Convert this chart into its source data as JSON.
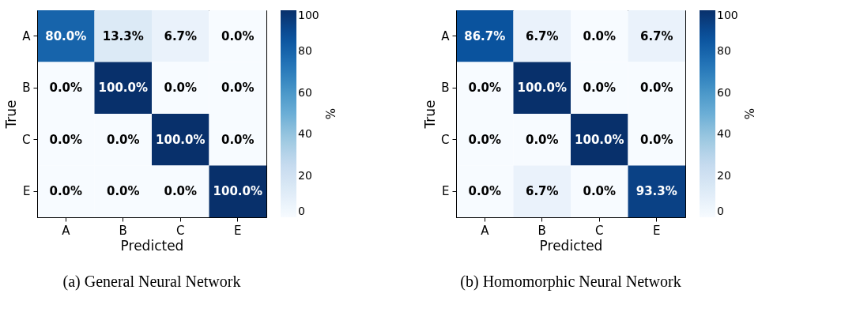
{
  "chart_data": [
    {
      "type": "heatmap",
      "title": "(a) General Neural Network",
      "xlabel": "Predicted",
      "ylabel": "True",
      "clabel": "%",
      "categories": [
        "A",
        "B",
        "C",
        "E"
      ],
      "y_categories": [
        "A",
        "B",
        "C",
        "E"
      ],
      "cells": [
        [
          80.0,
          13.3,
          6.7,
          0.0
        ],
        [
          0.0,
          100.0,
          0.0,
          0.0
        ],
        [
          0.0,
          0.0,
          100.0,
          0.0
        ],
        [
          0.0,
          0.0,
          0.0,
          100.0
        ]
      ],
      "cell_labels": [
        [
          "80.0%",
          "13.3%",
          "6.7%",
          "0.0%"
        ],
        [
          "0.0%",
          "100.0%",
          "0.0%",
          "0.0%"
        ],
        [
          "0.0%",
          "0.0%",
          "100.0%",
          "0.0%"
        ],
        [
          "0.0%",
          "0.0%",
          "0.0%",
          "100.0%"
        ]
      ],
      "clim": [
        0,
        100
      ],
      "cticks": [
        0,
        20,
        40,
        60,
        80,
        100
      ]
    },
    {
      "type": "heatmap",
      "title": "(b) Homomorphic Neural Network",
      "xlabel": "Predicted",
      "ylabel": "True",
      "clabel": "%",
      "categories": [
        "A",
        "B",
        "C",
        "E"
      ],
      "y_categories": [
        "A",
        "B",
        "C",
        "E"
      ],
      "cells": [
        [
          86.7,
          6.7,
          0.0,
          6.7
        ],
        [
          0.0,
          100.0,
          0.0,
          0.0
        ],
        [
          0.0,
          0.0,
          100.0,
          0.0
        ],
        [
          0.0,
          6.7,
          0.0,
          93.3
        ]
      ],
      "cell_labels": [
        [
          "86.7%",
          "6.7%",
          "0.0%",
          "6.7%"
        ],
        [
          "0.0%",
          "100.0%",
          "0.0%",
          "0.0%"
        ],
        [
          "0.0%",
          "0.0%",
          "100.0%",
          "0.0%"
        ],
        [
          "0.0%",
          "6.7%",
          "0.0%",
          "93.3%"
        ]
      ],
      "clim": [
        0,
        100
      ],
      "cticks": [
        0,
        20,
        40,
        60,
        80,
        100
      ]
    }
  ]
}
